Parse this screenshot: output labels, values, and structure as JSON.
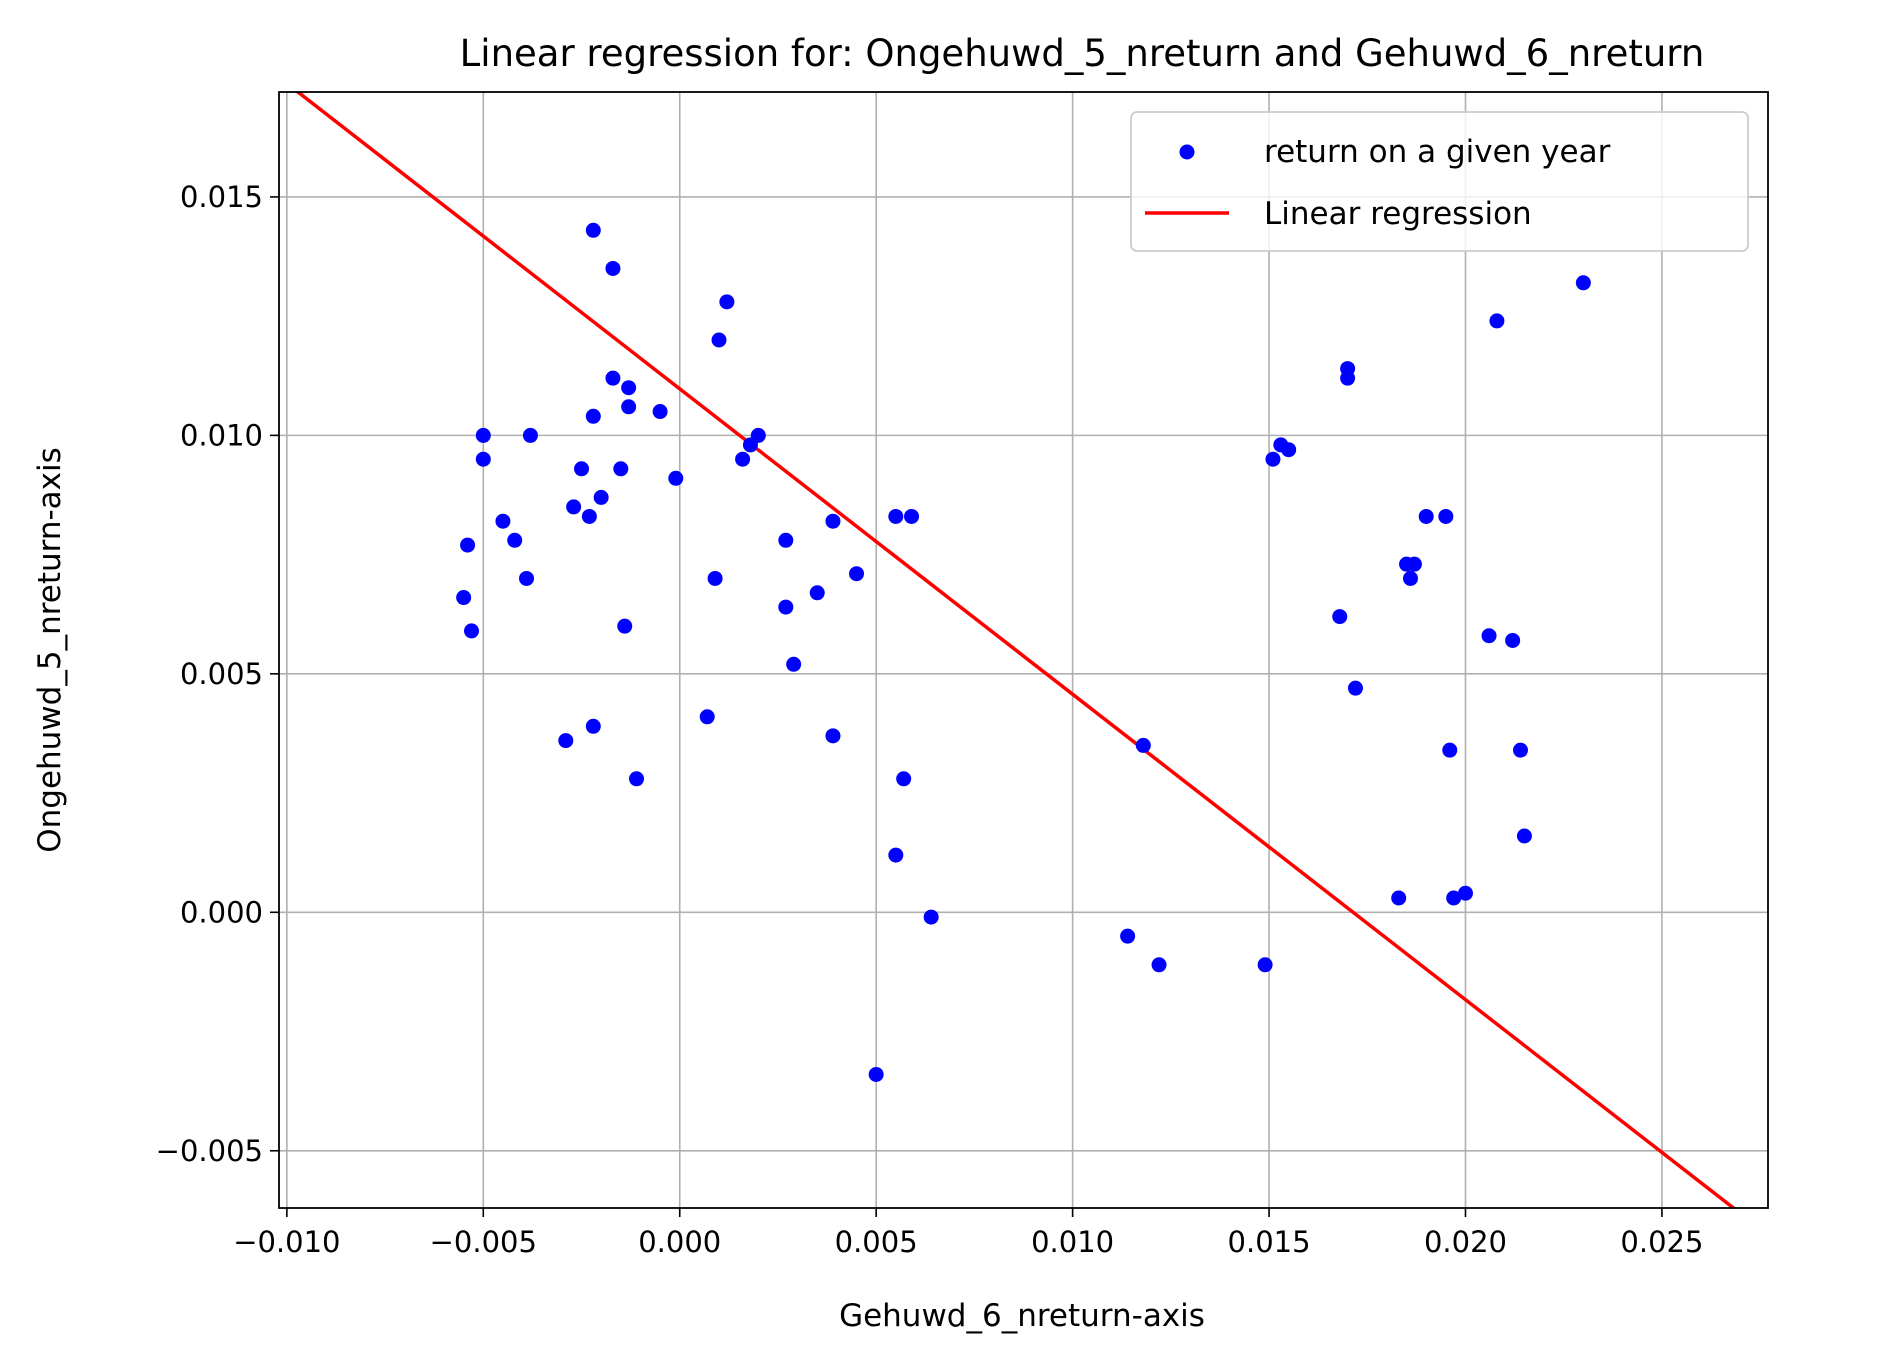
{
  "chart_data": {
    "type": "scatter",
    "title": "Linear regression for: Ongehuwd_5_nreturn and Gehuwd_6_nreturn",
    "xlabel": "Gehuwd_6_nreturn-axis",
    "ylabel": "Ongehuwd_5_nreturn-axis",
    "xlim": [
      -0.0102,
      0.0277
    ],
    "ylim": [
      -0.0062,
      0.0172
    ],
    "xticks": [
      -0.01,
      -0.005,
      0.0,
      0.005,
      0.01,
      0.015,
      0.02,
      0.025
    ],
    "xtick_labels": [
      "−0.010",
      "−0.005",
      "0.000",
      "0.005",
      "0.010",
      "0.015",
      "0.020",
      "0.025"
    ],
    "yticks": [
      -0.005,
      0.0,
      0.005,
      0.01,
      0.015
    ],
    "ytick_labels": [
      "−0.005",
      "0.000",
      "0.005",
      "0.010",
      "0.015"
    ],
    "grid": true,
    "legend_position": "top-right",
    "series": [
      {
        "name": "return on a given year",
        "kind": "scatter",
        "color": "#0000ff",
        "points": [
          [
            -0.0055,
            0.0066
          ],
          [
            -0.0054,
            0.0077
          ],
          [
            -0.0053,
            0.0059
          ],
          [
            -0.005,
            0.01
          ],
          [
            -0.005,
            0.0095
          ],
          [
            -0.0045,
            0.0082
          ],
          [
            -0.0042,
            0.0078
          ],
          [
            -0.0039,
            0.007
          ],
          [
            -0.0038,
            0.01
          ],
          [
            -0.0029,
            0.0036
          ],
          [
            -0.0027,
            0.0085
          ],
          [
            -0.0025,
            0.0093
          ],
          [
            -0.0023,
            0.0083
          ],
          [
            -0.0022,
            0.0104
          ],
          [
            -0.0022,
            0.0143
          ],
          [
            -0.0022,
            0.0039
          ],
          [
            -0.002,
            0.0087
          ],
          [
            -0.0017,
            0.0135
          ],
          [
            -0.0017,
            0.0112
          ],
          [
            -0.0015,
            0.0093
          ],
          [
            -0.0014,
            0.006
          ],
          [
            -0.0013,
            0.011
          ],
          [
            -0.0013,
            0.0106
          ],
          [
            -0.0011,
            0.0028
          ],
          [
            -0.0005,
            0.0105
          ],
          [
            -0.0001,
            0.0091
          ],
          [
            0.0007,
            0.0041
          ],
          [
            0.0009,
            0.007
          ],
          [
            0.001,
            0.012
          ],
          [
            0.0012,
            0.0128
          ],
          [
            0.0016,
            0.0095
          ],
          [
            0.0018,
            0.0098
          ],
          [
            0.002,
            0.01
          ],
          [
            0.0027,
            0.0078
          ],
          [
            0.0027,
            0.0064
          ],
          [
            0.0029,
            0.0052
          ],
          [
            0.0035,
            0.0067
          ],
          [
            0.0039,
            0.0082
          ],
          [
            0.0039,
            0.0037
          ],
          [
            0.0045,
            0.0071
          ],
          [
            0.005,
            -0.0034
          ],
          [
            0.0055,
            0.0083
          ],
          [
            0.0055,
            0.0012
          ],
          [
            0.0057,
            0.0028
          ],
          [
            0.0059,
            0.0083
          ],
          [
            0.0064,
            -0.0001
          ],
          [
            0.0114,
            -0.0005
          ],
          [
            0.0118,
            0.0035
          ],
          [
            0.0122,
            -0.0011
          ],
          [
            0.0149,
            -0.0011
          ],
          [
            0.0151,
            0.0095
          ],
          [
            0.0153,
            0.0098
          ],
          [
            0.0155,
            0.0097
          ],
          [
            0.0168,
            0.0062
          ],
          [
            0.017,
            0.0114
          ],
          [
            0.017,
            0.0112
          ],
          [
            0.0172,
            0.0047
          ],
          [
            0.0183,
            0.0003
          ],
          [
            0.0185,
            0.0073
          ],
          [
            0.0186,
            0.007
          ],
          [
            0.0187,
            0.0073
          ],
          [
            0.019,
            0.0083
          ],
          [
            0.0195,
            0.0083
          ],
          [
            0.0196,
            0.0034
          ],
          [
            0.0197,
            0.0003
          ],
          [
            0.02,
            0.0004
          ],
          [
            0.0206,
            0.0058
          ],
          [
            0.0208,
            0.0124
          ],
          [
            0.0212,
            0.0057
          ],
          [
            0.0214,
            0.0034
          ],
          [
            0.0215,
            0.0016
          ],
          [
            0.023,
            0.0132
          ]
        ]
      },
      {
        "name": "Linear regression",
        "kind": "line",
        "color": "#ff0000",
        "points": [
          [
            -0.00975,
            0.01722
          ],
          [
            0.02693,
            -0.00627
          ]
        ]
      }
    ]
  }
}
